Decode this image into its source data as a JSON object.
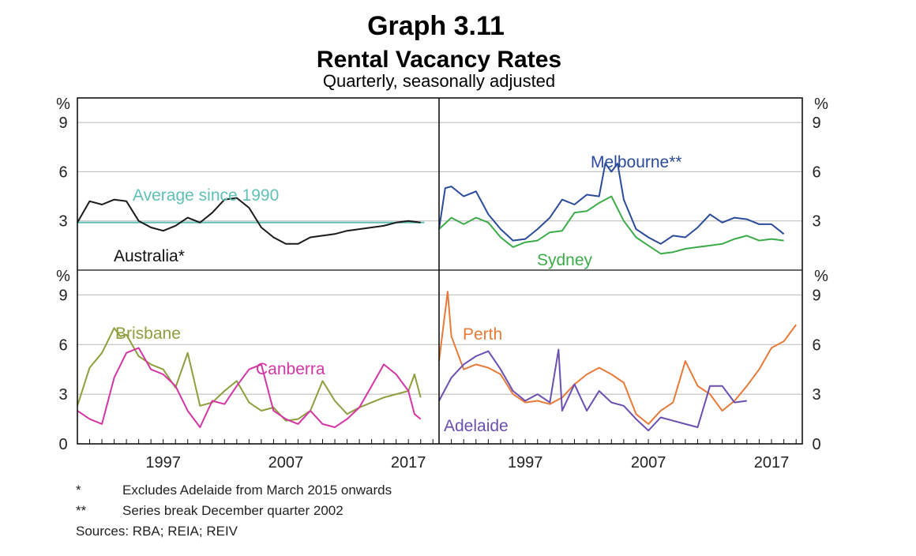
{
  "chart_data": {
    "type": "line",
    "title": "Graph 3.11",
    "subtitle": "Rental Vacancy Rates",
    "note": "Quarterly, seasonally adjusted",
    "y_unit": "%",
    "x_range": [
      1990,
      2019.5
    ],
    "ylim": [
      0,
      10.5
    ],
    "y_ticks": [
      0,
      3,
      6,
      9
    ],
    "x_ticks": [
      "1997",
      "2007",
      "2017"
    ],
    "grid": true,
    "footnotes": [
      {
        "marker": "*",
        "text": "Excludes Adelaide from March 2015 onwards"
      },
      {
        "marker": "**",
        "text": "Series break December quarter 2002"
      }
    ],
    "sources": "Sources: RBA; REIA; REIV",
    "panels": [
      {
        "position": "top-left",
        "reference_line": {
          "label": "Average since 1990",
          "value": 2.9,
          "x_range": [
            1990,
            2018.3
          ],
          "color": "#5fc1b6"
        },
        "series": [
          {
            "name": "Australia*",
            "color": "#1a1a1a",
            "x": [
              1990,
              1991,
              1992,
              1993,
              1994,
              1995,
              1996,
              1997,
              1998,
              1999,
              2000,
              2001,
              2002,
              2003,
              2004,
              2005,
              2006,
              2007,
              2008,
              2009,
              2010,
              2011,
              2012,
              2013,
              2014,
              2015,
              2016,
              2017,
              2018
            ],
            "y": [
              2.9,
              4.2,
              4.0,
              4.3,
              4.2,
              3.0,
              2.6,
              2.4,
              2.7,
              3.2,
              2.9,
              3.5,
              4.3,
              4.4,
              3.8,
              2.6,
              2.0,
              1.6,
              1.6,
              2.0,
              2.1,
              2.2,
              2.4,
              2.5,
              2.6,
              2.7,
              2.9,
              3.0,
              2.9
            ]
          }
        ],
        "labels": [
          "Australia*"
        ]
      },
      {
        "position": "top-right",
        "series": [
          {
            "name": "Melbourne**",
            "color": "#2a4a9a",
            "x": [
              1990,
              1990.5,
              1991,
              1992,
              1993,
              1994,
              1995,
              1996,
              1997,
              1998,
              1999,
              2000,
              2001,
              2002,
              2003,
              2003.5,
              2004,
              2004.5,
              2005,
              2006,
              2007,
              2008,
              2009,
              2010,
              2011,
              2012,
              2013,
              2014,
              2015,
              2016,
              2017,
              2018
            ],
            "y": [
              2.5,
              5.0,
              5.1,
              4.5,
              4.8,
              3.4,
              2.5,
              1.8,
              1.9,
              2.5,
              3.2,
              4.3,
              4.0,
              4.6,
              4.5,
              6.5,
              6.0,
              6.5,
              4.3,
              2.5,
              2.0,
              1.6,
              2.1,
              2.0,
              2.6,
              3.4,
              2.9,
              3.2,
              3.1,
              2.8,
              2.8,
              2.2
            ]
          },
          {
            "name": "Sydney",
            "color": "#3cab4a",
            "x": [
              1990,
              1991,
              1992,
              1993,
              1994,
              1995,
              1996,
              1997,
              1998,
              1999,
              2000,
              2001,
              2002,
              2003,
              2004,
              2005,
              2006,
              2007,
              2008,
              2009,
              2010,
              2011,
              2012,
              2013,
              2014,
              2015,
              2016,
              2017,
              2018
            ],
            "y": [
              2.5,
              3.2,
              2.8,
              3.2,
              2.9,
              2.0,
              1.4,
              1.7,
              1.8,
              2.3,
              2.4,
              3.5,
              3.6,
              4.1,
              4.5,
              3.0,
              2.0,
              1.5,
              1.0,
              1.1,
              1.3,
              1.4,
              1.5,
              1.6,
              1.9,
              2.1,
              1.8,
              1.9,
              1.8
            ]
          }
        ],
        "labels": [
          "Melbourne**",
          "Sydney"
        ]
      },
      {
        "position": "bottom-left",
        "series": [
          {
            "name": "Brisbane",
            "color": "#8f9e3c",
            "x": [
              1990,
              1991,
              1992,
              1993,
              1993.5,
              1994,
              1995,
              1996,
              1997,
              1998,
              1999,
              2000,
              2001,
              2002,
              2003,
              2004,
              2005,
              2006,
              2007,
              2008,
              2009,
              2010,
              2011,
              2012,
              2013,
              2014,
              2015,
              2016,
              2017,
              2017.5,
              2018
            ],
            "y": [
              2.3,
              4.6,
              5.5,
              7.0,
              6.5,
              6.6,
              5.3,
              4.8,
              4.5,
              3.4,
              5.5,
              2.3,
              2.5,
              3.2,
              3.8,
              2.5,
              2.0,
              2.2,
              1.4,
              1.5,
              2.0,
              3.8,
              2.6,
              1.8,
              2.2,
              2.5,
              2.8,
              3.0,
              3.2,
              4.2,
              2.8
            ]
          },
          {
            "name": "Canberra",
            "color": "#d435a4",
            "x": [
              1990,
              1991,
              1992,
              1993,
              1994,
              1995,
              1996,
              1997,
              1998,
              1999,
              2000,
              2001,
              2002,
              2003,
              2004,
              2005,
              2006,
              2007,
              2008,
              2009,
              2010,
              2011,
              2012,
              2013,
              2014,
              2015,
              2016,
              2017,
              2017.5,
              2018
            ],
            "y": [
              2.0,
              1.5,
              1.2,
              4.0,
              5.5,
              5.8,
              4.5,
              4.2,
              3.5,
              2.0,
              1.0,
              2.6,
              2.4,
              3.5,
              4.5,
              4.8,
              2.0,
              1.5,
              1.2,
              2.0,
              1.2,
              1.0,
              1.5,
              2.2,
              3.5,
              4.8,
              4.2,
              3.2,
              1.8,
              1.5
            ]
          }
        ],
        "labels": [
          "Brisbane",
          "Canberra"
        ]
      },
      {
        "position": "bottom-right",
        "series": [
          {
            "name": "Perth",
            "color": "#e87a38",
            "x": [
              1990,
              1990.7,
              1991,
              1992,
              1993,
              1994,
              1995,
              1996,
              1997,
              1998,
              1999,
              2000,
              2001,
              2002,
              2003,
              2004,
              2005,
              2006,
              2007,
              2008,
              2009,
              2010,
              2011,
              2012,
              2013,
              2014,
              2015,
              2016,
              2017,
              2018,
              2019
            ],
            "y": [
              5.0,
              9.2,
              6.5,
              4.5,
              4.8,
              4.6,
              4.2,
              3.0,
              2.5,
              2.6,
              2.4,
              2.8,
              3.6,
              4.2,
              4.6,
              4.2,
              3.7,
              1.8,
              1.2,
              2.0,
              2.5,
              5.0,
              3.5,
              3.0,
              2.0,
              2.6,
              3.5,
              4.5,
              5.8,
              6.2,
              7.2
            ]
          },
          {
            "name": "Adelaide",
            "color": "#6b4fb0",
            "x": [
              1990,
              1991,
              1992,
              1993,
              1994,
              1995,
              1996,
              1997,
              1998,
              1999,
              1999.7,
              2000,
              2001,
              2002,
              2003,
              2004,
              2005,
              2006,
              2007,
              2008,
              2009,
              2010,
              2011,
              2012,
              2013,
              2014,
              2015
            ],
            "y": [
              2.6,
              4.0,
              4.8,
              5.3,
              5.6,
              4.5,
              3.2,
              2.6,
              3.0,
              2.5,
              5.7,
              2.0,
              3.6,
              2.0,
              3.2,
              2.5,
              2.3,
              1.5,
              0.8,
              1.6,
              1.4,
              1.2,
              1.0,
              3.5,
              3.5,
              2.5,
              2.6
            ]
          }
        ],
        "labels": [
          "Perth",
          "Adelaide"
        ]
      }
    ]
  }
}
